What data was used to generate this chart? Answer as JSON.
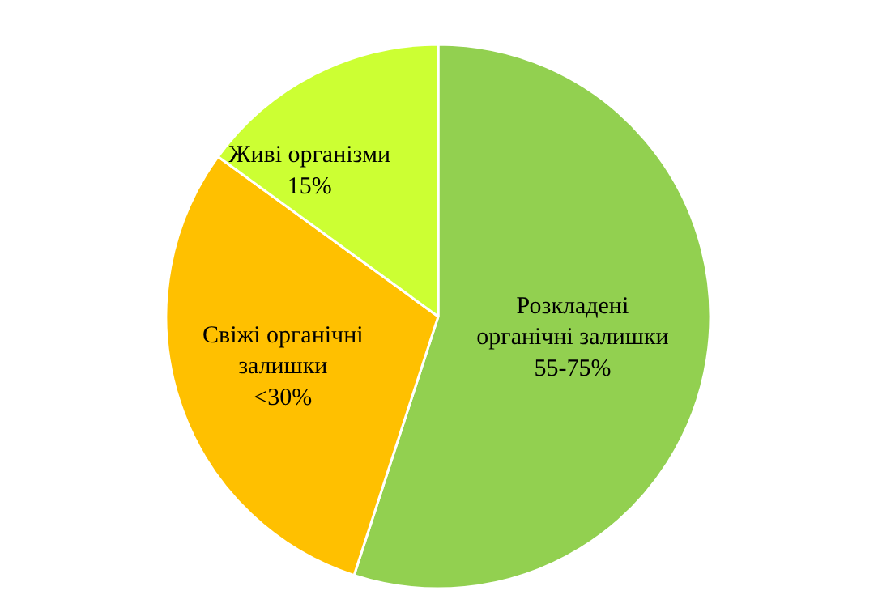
{
  "chart_data": {
    "type": "pie",
    "categories": [
      "Розкладені органічні залишки",
      "Свіжі органічні залишки",
      "Живі організми"
    ],
    "values": [
      55,
      30,
      15
    ],
    "value_labels": [
      "55-75%",
      "<30%",
      "15%"
    ],
    "colors": [
      "#92d050",
      "#ffc000",
      "#ccff33"
    ],
    "legend": false
  }
}
